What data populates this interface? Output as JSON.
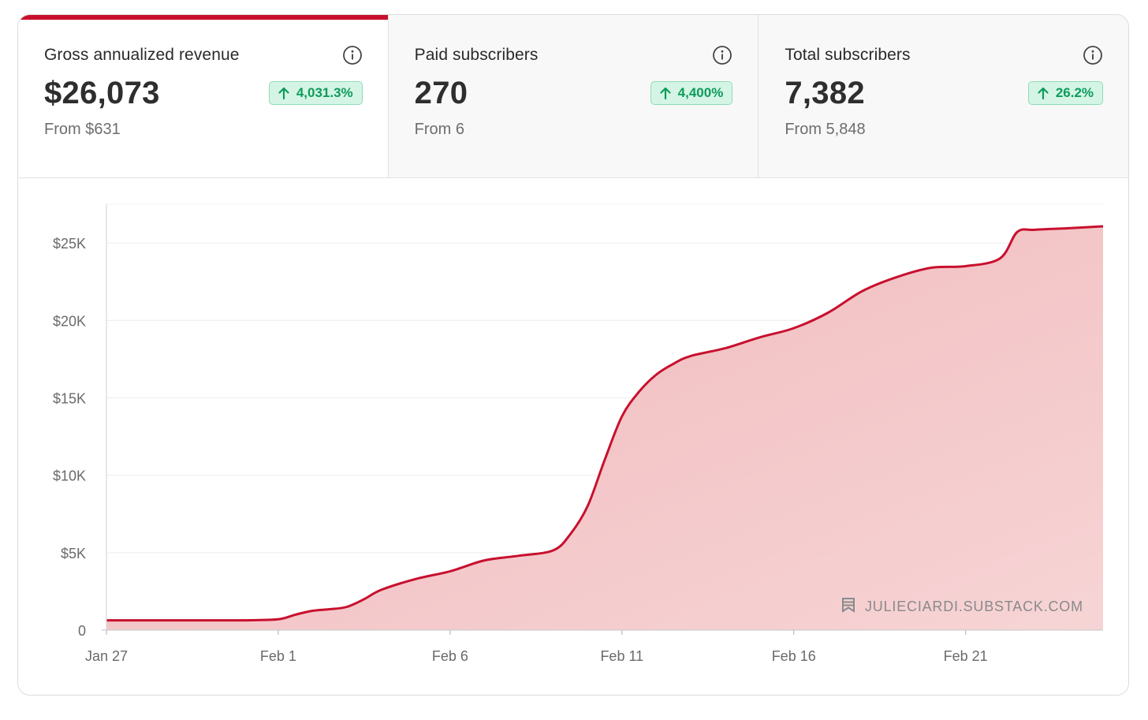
{
  "tabs": [
    {
      "label": "Gross annualized revenue",
      "value": "$26,073",
      "change": "4,031.3%",
      "from": "From $631",
      "active": true
    },
    {
      "label": "Paid subscribers",
      "value": "270",
      "change": "4,400%",
      "from": "From 6",
      "active": false
    },
    {
      "label": "Total subscribers",
      "value": "7,382",
      "change": "26.2%",
      "from": "From 5,848",
      "active": false
    }
  ],
  "watermark": "JULIECIARDI.SUBSTACK.COM",
  "colors": {
    "line": "#c8102e",
    "fill": "#f1b7b9",
    "badge_text": "#0e9b5a",
    "badge_bg": "#d4f5e6"
  },
  "chart_data": {
    "type": "area",
    "title": "Gross annualized revenue",
    "xlabel": "",
    "ylabel": "",
    "x_start_day": 0,
    "x_end_day": 29,
    "ylim": [
      0,
      27500
    ],
    "x_ticks": [
      {
        "day": 0,
        "label": "Jan 27"
      },
      {
        "day": 5,
        "label": "Feb 1"
      },
      {
        "day": 10,
        "label": "Feb 6"
      },
      {
        "day": 15,
        "label": "Feb 11"
      },
      {
        "day": 20,
        "label": "Feb 16"
      },
      {
        "day": 25,
        "label": "Feb 21"
      }
    ],
    "y_ticks": [
      {
        "value": 0,
        "label": "0"
      },
      {
        "value": 5000,
        "label": "$5K"
      },
      {
        "value": 10000,
        "label": "$10K"
      },
      {
        "value": 15000,
        "label": "$15K"
      },
      {
        "value": 20000,
        "label": "$20K"
      },
      {
        "value": 25000,
        "label": "$25K"
      }
    ],
    "grid": true,
    "series": [
      {
        "name": "Gross annualized revenue",
        "x": [
          0,
          1,
          2,
          3,
          4,
          5,
          5.5,
          6,
          6.5,
          7,
          7.5,
          8,
          9,
          10,
          11,
          12,
          13,
          13.5,
          14,
          14.5,
          15,
          15.5,
          16,
          16.5,
          17,
          18,
          19,
          20,
          21,
          22,
          23,
          24,
          25,
          26,
          26.5,
          27,
          28,
          29
        ],
        "values": [
          631,
          631,
          631,
          631,
          631,
          700,
          1000,
          1250,
          1350,
          1500,
          2000,
          2600,
          3300,
          3800,
          4500,
          4800,
          5150,
          6200,
          8000,
          11000,
          13800,
          15400,
          16500,
          17200,
          17700,
          18200,
          18900,
          19500,
          20500,
          21900,
          22800,
          23400,
          23500,
          24000,
          25700,
          25850,
          25950,
          26073
        ]
      }
    ]
  }
}
